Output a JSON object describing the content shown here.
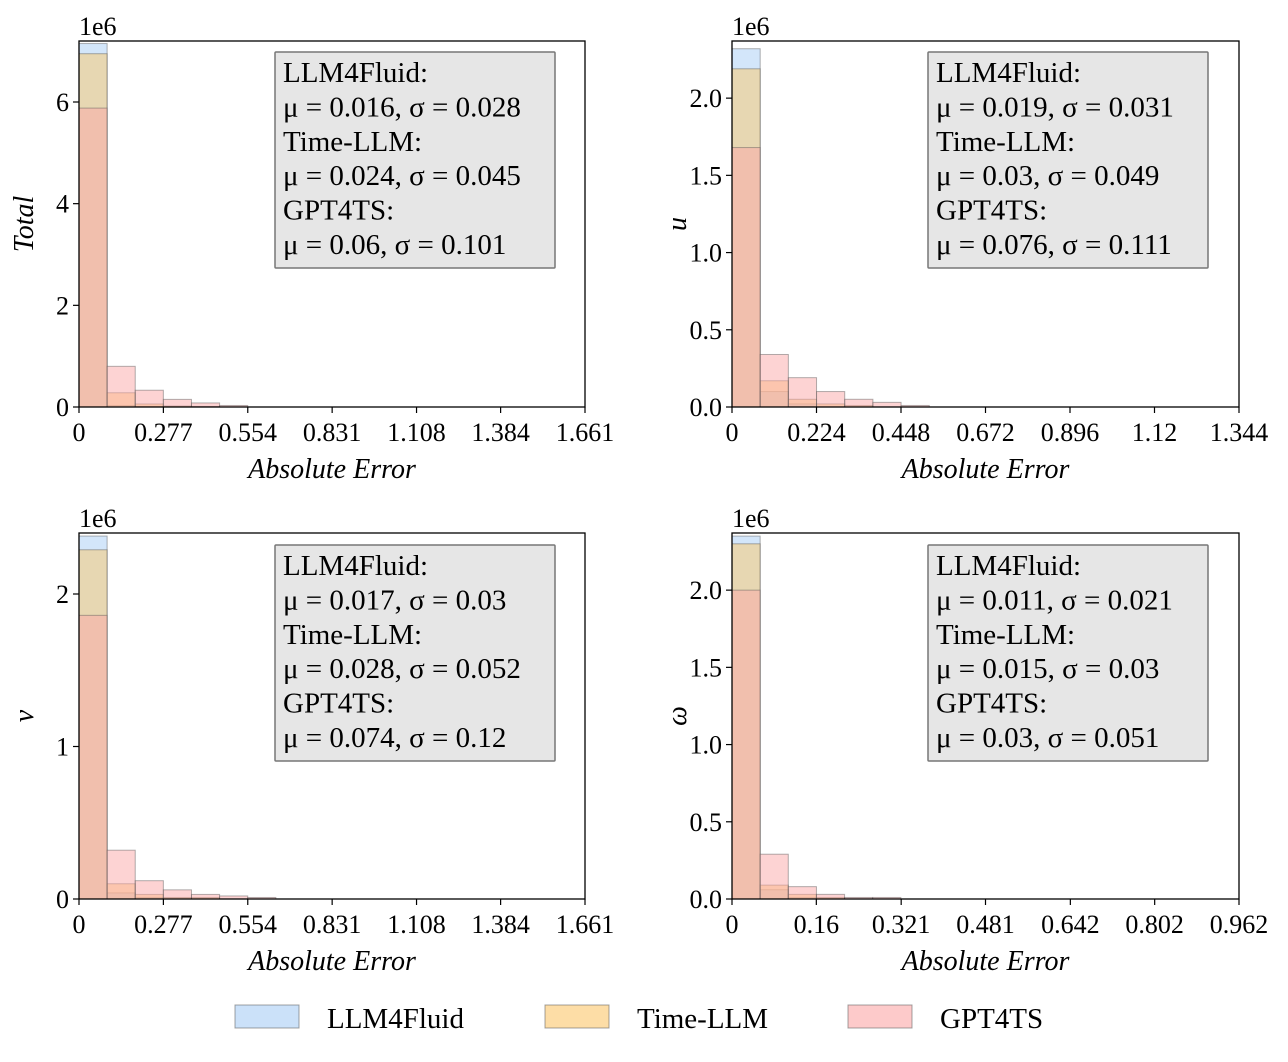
{
  "legend": {
    "entries": [
      {
        "name": "LLM4Fluid",
        "color": "#a8cdf5"
      },
      {
        "name": "Time-LLM",
        "color": "#fbc76a"
      },
      {
        "name": "GPT4TS",
        "color": "#fca7a7"
      }
    ],
    "placement": "bottom-center"
  },
  "chart_data": [
    {
      "type": "bar",
      "ylabel": "Total",
      "xlabel": "Absolute Error",
      "y_multiplier_label": "1e6",
      "xlim": [
        0,
        1.661
      ],
      "ylim": [
        0,
        7.2
      ],
      "bin_width": 0.0923,
      "x_ticks": [
        0,
        0.277,
        0.554,
        0.831,
        1.108,
        1.384,
        1.661
      ],
      "x_tick_labels": [
        "0",
        "0.277",
        "0.554",
        "0.831",
        "1.108",
        "1.384",
        "1.661"
      ],
      "y_ticks": [
        0,
        2,
        4,
        6
      ],
      "y_tick_labels": [
        "0",
        "2",
        "4",
        "6"
      ],
      "series": [
        {
          "name": "LLM4Fluid",
          "values": [
            7.15,
            0.03,
            0.01,
            0,
            0,
            0
          ]
        },
        {
          "name": "Time-LLM",
          "values": [
            6.95,
            0.28,
            0.06,
            0.02,
            0.01,
            0
          ]
        },
        {
          "name": "GPT4TS",
          "values": [
            5.88,
            0.8,
            0.33,
            0.15,
            0.08,
            0.03
          ]
        }
      ],
      "stats": [
        {
          "label": "LLM4Fluid:",
          "value": "μ = 0.016, σ = 0.028"
        },
        {
          "label": "Time-LLM:",
          "value": "μ = 0.024, σ = 0.045"
        },
        {
          "label": "GPT4TS:",
          "value": "μ = 0.06, σ = 0.101"
        }
      ]
    },
    {
      "type": "bar",
      "ylabel": "u",
      "xlabel": "Absolute Error",
      "y_multiplier_label": "1e6",
      "xlim": [
        0,
        1.344
      ],
      "ylim": [
        0,
        2.37
      ],
      "bin_width": 0.0747,
      "x_ticks": [
        0,
        0.224,
        0.448,
        0.672,
        0.896,
        1.12,
        1.344
      ],
      "x_tick_labels": [
        "0",
        "0.224",
        "0.448",
        "0.672",
        "0.896",
        "1.12",
        "1.344"
      ],
      "y_ticks": [
        0,
        0.5,
        1.0,
        1.5,
        2.0
      ],
      "y_tick_labels": [
        "0.0",
        "0.5",
        "1.0",
        "1.5",
        "2.0"
      ],
      "series": [
        {
          "name": "LLM4Fluid",
          "values": [
            2.32,
            0.1,
            0.02,
            0,
            0,
            0,
            0
          ]
        },
        {
          "name": "Time-LLM",
          "values": [
            2.19,
            0.17,
            0.05,
            0.02,
            0.01,
            0,
            0
          ]
        },
        {
          "name": "GPT4TS",
          "values": [
            1.68,
            0.34,
            0.19,
            0.1,
            0.05,
            0.03,
            0.01
          ]
        }
      ],
      "stats": [
        {
          "label": "LLM4Fluid:",
          "value": "μ = 0.019, σ = 0.031"
        },
        {
          "label": "Time-LLM:",
          "value": "μ = 0.03, σ = 0.049"
        },
        {
          "label": "GPT4TS:",
          "value": "μ = 0.076, σ = 0.111"
        }
      ]
    },
    {
      "type": "bar",
      "ylabel": "v",
      "xlabel": "Absolute Error",
      "y_multiplier_label": "1e6",
      "xlim": [
        0,
        1.661
      ],
      "ylim": [
        0,
        2.4
      ],
      "bin_width": 0.0923,
      "x_ticks": [
        0,
        0.277,
        0.554,
        0.831,
        1.108,
        1.384,
        1.661
      ],
      "x_tick_labels": [
        "0",
        "0.277",
        "0.554",
        "0.831",
        "1.108",
        "1.384",
        "1.661"
      ],
      "y_ticks": [
        0,
        1,
        2
      ],
      "y_tick_labels": [
        "0",
        "1",
        "2"
      ],
      "series": [
        {
          "name": "LLM4Fluid",
          "values": [
            2.38,
            0.04,
            0.01,
            0,
            0,
            0,
            0
          ]
        },
        {
          "name": "Time-LLM",
          "values": [
            2.29,
            0.1,
            0.03,
            0.01,
            0.01,
            0,
            0
          ]
        },
        {
          "name": "GPT4TS",
          "values": [
            1.86,
            0.32,
            0.12,
            0.06,
            0.03,
            0.02,
            0.01
          ]
        }
      ],
      "stats": [
        {
          "label": "LLM4Fluid:",
          "value": "μ = 0.017, σ = 0.03"
        },
        {
          "label": "Time-LLM:",
          "value": "μ = 0.028, σ = 0.052"
        },
        {
          "label": "GPT4TS:",
          "value": "μ = 0.074, σ = 0.12"
        }
      ]
    },
    {
      "type": "bar",
      "ylabel": "ω",
      "xlabel": "Absolute Error",
      "y_multiplier_label": "1e6",
      "xlim": [
        0,
        0.962
      ],
      "ylim": [
        0,
        2.37
      ],
      "bin_width": 0.0534,
      "x_ticks": [
        0,
        0.16,
        0.321,
        0.481,
        0.642,
        0.802,
        0.962
      ],
      "x_tick_labels": [
        "0",
        "0.16",
        "0.321",
        "0.481",
        "0.642",
        "0.802",
        "0.962"
      ],
      "y_ticks": [
        0,
        0.5,
        1.0,
        1.5,
        2.0
      ],
      "y_tick_labels": [
        "0.0",
        "0.5",
        "1.0",
        "1.5",
        "2.0"
      ],
      "series": [
        {
          "name": "LLM4Fluid",
          "values": [
            2.35,
            0.06,
            0.01,
            0,
            0,
            0
          ]
        },
        {
          "name": "Time-LLM",
          "values": [
            2.3,
            0.09,
            0.03,
            0.01,
            0,
            0
          ]
        },
        {
          "name": "GPT4TS",
          "values": [
            2.0,
            0.29,
            0.08,
            0.03,
            0.01,
            0.01
          ]
        }
      ],
      "stats": [
        {
          "label": "LLM4Fluid:",
          "value": "μ = 0.011, σ = 0.021"
        },
        {
          "label": "Time-LLM:",
          "value": "μ = 0.015, σ = 0.03"
        },
        {
          "label": "GPT4TS:",
          "value": "μ = 0.03, σ = 0.051"
        }
      ]
    }
  ]
}
